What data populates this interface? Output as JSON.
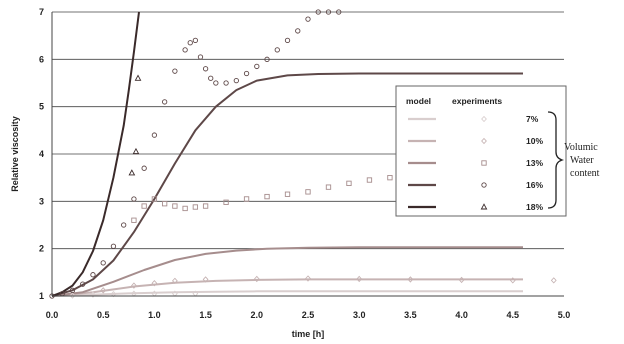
{
  "chart_data": {
    "type": "scatter",
    "xlabel": "time [h]",
    "ylabel": "Relative viscosity",
    "xlim": [
      0,
      5
    ],
    "ylim": [
      1,
      7
    ],
    "x_ticks": [
      "0.0",
      "0.5",
      "1.0",
      "1.5",
      "2.0",
      "2.5",
      "3.0",
      "3.5",
      "4.0",
      "4.5",
      "5.0"
    ],
    "y_ticks": [
      "1",
      "2",
      "3",
      "4",
      "5",
      "6",
      "7"
    ],
    "grid": "horizontal",
    "legend": {
      "placement": "center-right",
      "model_header": "model",
      "experiments_header": "experiments",
      "group_label_lines": [
        "Volumic",
        "Water",
        "content"
      ]
    },
    "series": [
      {
        "name": "7%",
        "color": "#d9cece",
        "marker": "diamond",
        "model_x": [
          0,
          0.4,
          0.8,
          1.2,
          1.6,
          2.0,
          2.5,
          3.0,
          3.5,
          4.0,
          4.6
        ],
        "model_y": [
          1.0,
          1.03,
          1.06,
          1.08,
          1.09,
          1.1,
          1.1,
          1.1,
          1.1,
          1.1,
          1.1
        ],
        "exp_x": [
          0.2,
          0.4,
          0.6,
          0.8,
          1.0,
          1.2,
          1.4
        ],
        "exp_y": [
          1.01,
          1.03,
          1.04,
          1.05,
          1.05,
          1.05,
          1.05
        ]
      },
      {
        "name": "10%",
        "color": "#c6b3b3",
        "marker": "diamond",
        "model_x": [
          0,
          0.4,
          0.8,
          1.2,
          1.6,
          2.0,
          2.5,
          3.0,
          3.5,
          4.0,
          4.6
        ],
        "model_y": [
          1.0,
          1.08,
          1.2,
          1.28,
          1.32,
          1.34,
          1.35,
          1.35,
          1.35,
          1.35,
          1.35
        ],
        "exp_x": [
          0.5,
          0.8,
          1.0,
          1.2,
          1.5,
          2.0,
          2.5,
          3.0,
          3.5,
          4.0,
          4.5,
          4.9
        ],
        "exp_y": [
          1.12,
          1.22,
          1.27,
          1.32,
          1.35,
          1.36,
          1.37,
          1.36,
          1.35,
          1.34,
          1.33,
          1.33
        ]
      },
      {
        "name": "13%",
        "color": "#a68d8d",
        "marker": "square",
        "model_x": [
          0,
          0.3,
          0.6,
          0.9,
          1.2,
          1.5,
          1.8,
          2.1,
          2.5,
          3.0,
          3.5,
          4.0,
          4.6
        ],
        "model_y": [
          1.0,
          1.08,
          1.3,
          1.55,
          1.76,
          1.89,
          1.96,
          2.0,
          2.02,
          2.03,
          2.03,
          2.03,
          2.03
        ],
        "exp_x": [
          0.8,
          0.9,
          1.0,
          1.1,
          1.2,
          1.3,
          1.4,
          1.5,
          1.7,
          1.9,
          2.1,
          2.3,
          2.5,
          2.7,
          2.9,
          3.1,
          3.3,
          3.5,
          3.7,
          3.9,
          4.1,
          4.3
        ],
        "exp_y": [
          2.6,
          2.9,
          3.05,
          2.95,
          2.9,
          2.85,
          2.88,
          2.9,
          2.98,
          3.05,
          3.1,
          3.15,
          3.2,
          3.3,
          3.38,
          3.45,
          3.5,
          3.55,
          3.6,
          3.62,
          3.62,
          3.62
        ]
      },
      {
        "name": "16%",
        "color": "#5e4848",
        "marker": "circle",
        "model_x": [
          0,
          0.2,
          0.4,
          0.6,
          0.8,
          1.0,
          1.2,
          1.4,
          1.6,
          1.8,
          2.0,
          2.3,
          2.6,
          3.0,
          3.5,
          4.0,
          4.6
        ],
        "model_y": [
          1.0,
          1.12,
          1.35,
          1.75,
          2.35,
          3.05,
          3.8,
          4.5,
          5.0,
          5.35,
          5.55,
          5.66,
          5.69,
          5.7,
          5.7,
          5.7,
          5.7
        ],
        "exp_x": [
          0.0,
          0.1,
          0.2,
          0.3,
          0.4,
          0.5,
          0.6,
          0.7,
          0.8,
          0.9,
          1.0,
          1.1,
          1.2,
          1.3,
          1.35,
          1.4,
          1.45,
          1.5,
          1.55,
          1.6,
          1.7,
          1.8,
          1.9,
          2.0,
          2.1,
          2.2,
          2.3,
          2.4,
          2.5,
          2.6,
          2.7,
          2.8
        ],
        "exp_y": [
          1.0,
          1.05,
          1.12,
          1.25,
          1.45,
          1.7,
          2.05,
          2.5,
          3.05,
          3.7,
          4.4,
          5.1,
          5.75,
          6.2,
          6.35,
          6.4,
          6.05,
          5.8,
          5.6,
          5.5,
          5.5,
          5.55,
          5.7,
          5.85,
          6.0,
          6.2,
          6.4,
          6.6,
          6.85,
          7.0,
          7.0,
          7.0
        ]
      },
      {
        "name": "18%",
        "color": "#3a2a2a",
        "marker": "triangle",
        "model_x": [
          0,
          0.1,
          0.2,
          0.3,
          0.4,
          0.5,
          0.6,
          0.7,
          0.75,
          0.8,
          0.85
        ],
        "model_y": [
          1.0,
          1.08,
          1.22,
          1.5,
          1.95,
          2.6,
          3.5,
          4.6,
          5.35,
          6.15,
          7.0
        ],
        "exp_x": [
          0.78,
          0.82,
          0.84
        ],
        "exp_y": [
          3.6,
          4.05,
          5.6
        ]
      }
    ]
  }
}
